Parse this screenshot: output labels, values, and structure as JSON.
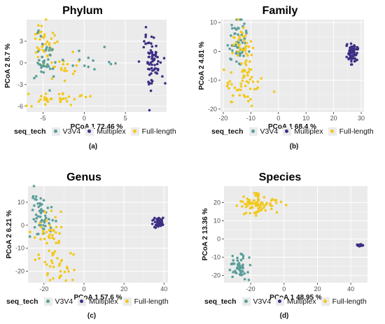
{
  "colors": {
    "V3V4": "#5a9e9a",
    "Multiplex": "#3e2f84",
    "Full-length": "#f2c81d",
    "panel_bg": "#ebebeb",
    "grid": "#ffffff"
  },
  "legend": {
    "title": "seq_tech",
    "items": [
      "V3V4",
      "Multiplex",
      "Full-length"
    ]
  },
  "chart_data": [
    {
      "type": "scatter",
      "caption": "(a)",
      "title": "Phylum",
      "xlabel": "PCoA 1  72.46 %",
      "ylabel": "PCoA 2 8.7 %",
      "xlim": [
        -7,
        10
      ],
      "ylim": [
        -6.8,
        6
      ],
      "xticks": [
        -5,
        0,
        5
      ],
      "yticks": [
        -6,
        -3,
        0,
        3
      ],
      "clusters": [
        {
          "series": "Full-length",
          "n": 38,
          "cx": -4.7,
          "cy": 3.0,
          "sx": 0.8,
          "sy": 1.5,
          "seed": 11
        },
        {
          "series": "Full-length",
          "n": 34,
          "cx": -3.6,
          "cy": -5.0,
          "sx": 1.8,
          "sy": 0.6,
          "seed": 12
        },
        {
          "series": "Full-length",
          "n": 22,
          "cx": -2.5,
          "cy": -0.7,
          "sx": 1.0,
          "sy": 0.9,
          "seed": 13
        },
        {
          "series": "V3V4",
          "n": 42,
          "cx": -4.8,
          "cy": 0.5,
          "sx": 0.6,
          "sy": 1.8,
          "seed": 14
        },
        {
          "series": "V3V4",
          "n": 12,
          "cx": 0.8,
          "cy": 0.4,
          "sx": 1.5,
          "sy": 0.8,
          "seed": 15
        },
        {
          "series": "Multiplex",
          "n": 70,
          "cx": 8.3,
          "cy": 0.2,
          "sx": 0.5,
          "sy": 2.3,
          "seed": 16
        }
      ]
    },
    {
      "type": "scatter",
      "caption": "(b)",
      "title": "Family",
      "xlabel": "PCoA 1  68.4 %",
      "ylabel": "PCoA 2 4.81 %",
      "xlim": [
        -21,
        31
      ],
      "ylim": [
        -21,
        11
      ],
      "xticks": [
        -20,
        -10,
        0,
        10,
        20,
        30
      ],
      "yticks": [
        -20,
        -10,
        0,
        10
      ],
      "clusters": [
        {
          "series": "V3V4",
          "n": 55,
          "cx": -14.5,
          "cy": 3.0,
          "sx": 1.7,
          "sy": 4.0,
          "seed": 21
        },
        {
          "series": "Full-length",
          "n": 45,
          "cx": -13.0,
          "cy": 1.0,
          "sx": 2.0,
          "sy": 4.0,
          "seed": 22
        },
        {
          "series": "Full-length",
          "n": 45,
          "cx": -12.0,
          "cy": -12.5,
          "sx": 3.5,
          "sy": 3.5,
          "seed": 23
        },
        {
          "series": "Multiplex",
          "n": 65,
          "cx": 26.8,
          "cy": -0.5,
          "sx": 0.9,
          "sy": 1.8,
          "seed": 24
        }
      ]
    },
    {
      "type": "scatter",
      "caption": "(c)",
      "title": "Genus",
      "xlabel": "PCoA 1  57.6 %",
      "ylabel": "PCoA 2 6.21 %",
      "xlim": [
        -28,
        42
      ],
      "ylim": [
        -25,
        17
      ],
      "xticks": [
        -20,
        0,
        20,
        40
      ],
      "yticks": [
        -20,
        -10,
        0,
        10
      ],
      "clusters": [
        {
          "series": "V3V4",
          "n": 40,
          "cx": -22.5,
          "cy": 6.0,
          "sx": 2.0,
          "sy": 5.0,
          "seed": 31
        },
        {
          "series": "V3V4",
          "n": 15,
          "cx": -19.0,
          "cy": 2.0,
          "sx": 2.5,
          "sy": 2.5,
          "seed": 32
        },
        {
          "series": "Full-length",
          "n": 35,
          "cx": -17.0,
          "cy": -3.0,
          "sx": 4.0,
          "sy": 5.0,
          "seed": 33
        },
        {
          "series": "Full-length",
          "n": 35,
          "cx": -13.0,
          "cy": -17.0,
          "sx": 5.5,
          "sy": 3.5,
          "seed": 34
        },
        {
          "series": "Multiplex",
          "n": 60,
          "cx": 37.5,
          "cy": 1.2,
          "sx": 1.1,
          "sy": 1.2,
          "seed": 35
        }
      ]
    },
    {
      "type": "scatter",
      "caption": "(d)",
      "title": "Species",
      "xlabel": "PCoA 1  48.95 %",
      "ylabel": "PCoA 2 13.36 %",
      "xlim": [
        -36,
        50
      ],
      "ylim": [
        -24,
        29
      ],
      "xticks": [
        -20,
        0,
        20,
        40
      ],
      "yticks": [
        -20,
        -10,
        0,
        10,
        20
      ],
      "clusters": [
        {
          "series": "Full-length",
          "n": 85,
          "cx": -16.0,
          "cy": 19.5,
          "sx": 6.5,
          "sy": 3.2,
          "seed": 41
        },
        {
          "series": "V3V4",
          "n": 50,
          "cx": -27.0,
          "cy": -15.5,
          "sx": 3.0,
          "sy": 3.5,
          "seed": 42
        },
        {
          "series": "Multiplex",
          "n": 40,
          "cx": 45.5,
          "cy": -3.5,
          "sx": 0.8,
          "sy": 0.3,
          "seed": 43
        }
      ]
    }
  ]
}
